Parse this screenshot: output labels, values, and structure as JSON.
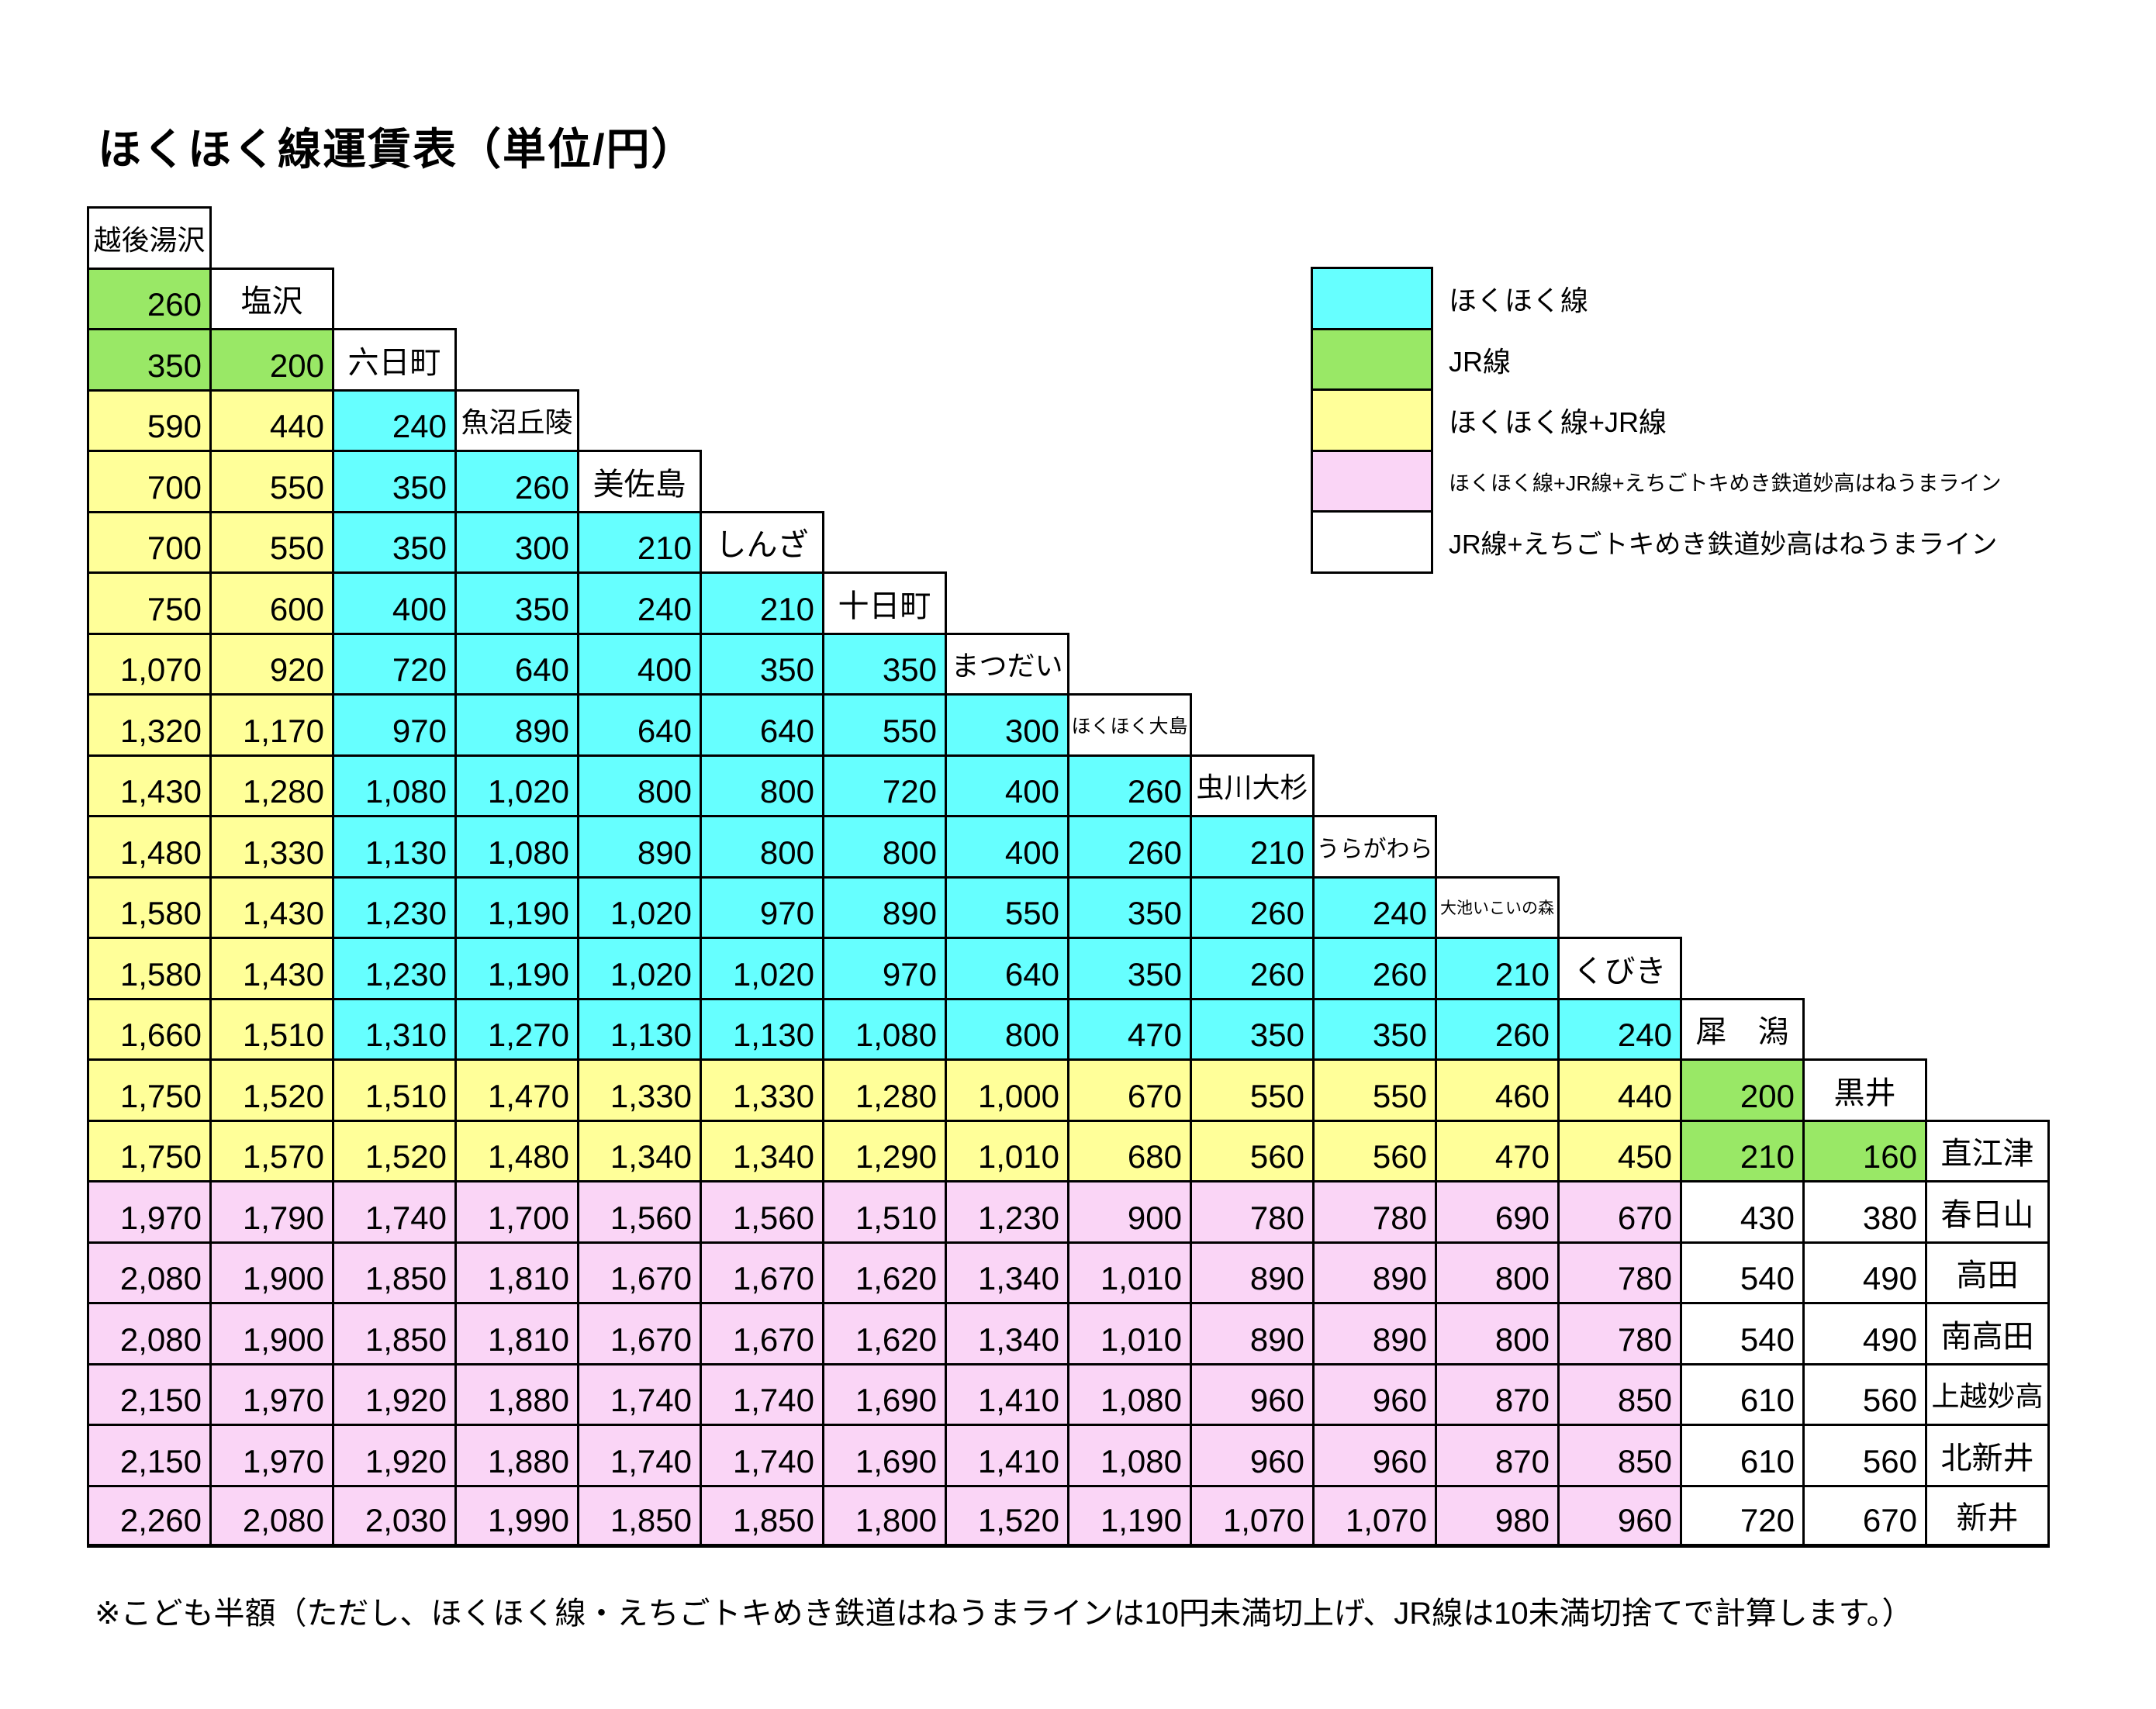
{
  "title": "ほくほく線運賃表（単位/円）",
  "note": "※こども半額（ただし、ほくほく線・えちごトキめき鉄道はねうまラインは10円未満切上げ、JR線は10未満切捨てで計算します。）",
  "legend": {
    "items": [
      {
        "key": "H",
        "label": "ほくほく線",
        "color": "#66FFFF"
      },
      {
        "key": "J",
        "label": "JR線",
        "color": "#99E866"
      },
      {
        "key": "HJ",
        "label": "ほくほく線+JR線",
        "color": "#FFFF99"
      },
      {
        "key": "HJT",
        "label": "ほくほく線+JR線+えちごトキめき鉄道妙高はねうまライン",
        "color": "#FAD5F6"
      },
      {
        "key": "JT",
        "label": "JR線+えちごトキめき鉄道妙高はねうまライン",
        "color": "#FFFFFF"
      }
    ]
  },
  "fare_table": {
    "unit": "円",
    "stations": [
      {
        "name": "越後湯沢",
        "fares": [],
        "categories": []
      },
      {
        "name": "塩沢",
        "fares": [
          "260"
        ],
        "categories": [
          "J"
        ]
      },
      {
        "name": "六日町",
        "fares": [
          "350",
          "200"
        ],
        "categories": [
          "J",
          "J"
        ]
      },
      {
        "name": "魚沼丘陵",
        "fares": [
          "590",
          "440",
          "240"
        ],
        "categories": [
          "HJ",
          "HJ",
          "H"
        ]
      },
      {
        "name": "美佐島",
        "fares": [
          "700",
          "550",
          "350",
          "260"
        ],
        "categories": [
          "HJ",
          "HJ",
          "H",
          "H"
        ]
      },
      {
        "name": "しんざ",
        "fares": [
          "700",
          "550",
          "350",
          "300",
          "210"
        ],
        "categories": [
          "HJ",
          "HJ",
          "H",
          "H",
          "H"
        ]
      },
      {
        "name": "十日町",
        "fares": [
          "750",
          "600",
          "400",
          "350",
          "240",
          "210"
        ],
        "categories": [
          "HJ",
          "HJ",
          "H",
          "H",
          "H",
          "H"
        ]
      },
      {
        "name": "まつだい",
        "fares": [
          "1,070",
          "920",
          "720",
          "640",
          "400",
          "350",
          "350"
        ],
        "categories": [
          "HJ",
          "HJ",
          "H",
          "H",
          "H",
          "H",
          "H"
        ]
      },
      {
        "name": "ほくほく大島",
        "fares": [
          "1,320",
          "1,170",
          "970",
          "890",
          "640",
          "640",
          "550",
          "300"
        ],
        "categories": [
          "HJ",
          "HJ",
          "H",
          "H",
          "H",
          "H",
          "H",
          "H"
        ]
      },
      {
        "name": "虫川大杉",
        "fares": [
          "1,430",
          "1,280",
          "1,080",
          "1,020",
          "800",
          "800",
          "720",
          "400",
          "260"
        ],
        "categories": [
          "HJ",
          "HJ",
          "H",
          "H",
          "H",
          "H",
          "H",
          "H",
          "H"
        ]
      },
      {
        "name": "うらがわら",
        "fares": [
          "1,480",
          "1,330",
          "1,130",
          "1,080",
          "890",
          "800",
          "800",
          "400",
          "260",
          "210"
        ],
        "categories": [
          "HJ",
          "HJ",
          "H",
          "H",
          "H",
          "H",
          "H",
          "H",
          "H",
          "H"
        ]
      },
      {
        "name": "大池いこいの森",
        "fares": [
          "1,580",
          "1,430",
          "1,230",
          "1,190",
          "1,020",
          "970",
          "890",
          "550",
          "350",
          "260",
          "240"
        ],
        "categories": [
          "HJ",
          "HJ",
          "H",
          "H",
          "H",
          "H",
          "H",
          "H",
          "H",
          "H",
          "H"
        ]
      },
      {
        "name": "くびき",
        "fares": [
          "1,580",
          "1,430",
          "1,230",
          "1,190",
          "1,020",
          "1,020",
          "970",
          "640",
          "350",
          "260",
          "260",
          "210"
        ],
        "categories": [
          "HJ",
          "HJ",
          "H",
          "H",
          "H",
          "H",
          "H",
          "H",
          "H",
          "H",
          "H",
          "H"
        ]
      },
      {
        "name": "犀　潟",
        "fares": [
          "1,660",
          "1,510",
          "1,310",
          "1,270",
          "1,130",
          "1,130",
          "1,080",
          "800",
          "470",
          "350",
          "350",
          "260",
          "240"
        ],
        "categories": [
          "HJ",
          "HJ",
          "H",
          "H",
          "H",
          "H",
          "H",
          "H",
          "H",
          "H",
          "H",
          "H",
          "H"
        ]
      },
      {
        "name": "黒井",
        "fares": [
          "1,750",
          "1,520",
          "1,510",
          "1,470",
          "1,330",
          "1,330",
          "1,280",
          "1,000",
          "670",
          "550",
          "550",
          "460",
          "440",
          "200"
        ],
        "categories": [
          "HJ",
          "HJ",
          "HJ",
          "HJ",
          "HJ",
          "HJ",
          "HJ",
          "HJ",
          "HJ",
          "HJ",
          "HJ",
          "HJ",
          "HJ",
          "J"
        ]
      },
      {
        "name": "直江津",
        "fares": [
          "1,750",
          "1,570",
          "1,520",
          "1,480",
          "1,340",
          "1,340",
          "1,290",
          "1,010",
          "680",
          "560",
          "560",
          "470",
          "450",
          "210",
          "160"
        ],
        "categories": [
          "HJ",
          "HJ",
          "HJ",
          "HJ",
          "HJ",
          "HJ",
          "HJ",
          "HJ",
          "HJ",
          "HJ",
          "HJ",
          "HJ",
          "HJ",
          "J",
          "J"
        ]
      },
      {
        "name": "春日山",
        "fares": [
          "1,970",
          "1,790",
          "1,740",
          "1,700",
          "1,560",
          "1,560",
          "1,510",
          "1,230",
          "900",
          "780",
          "780",
          "690",
          "670",
          "430",
          "380"
        ],
        "categories": [
          "HJT",
          "HJT",
          "HJT",
          "HJT",
          "HJT",
          "HJT",
          "HJT",
          "HJT",
          "HJT",
          "HJT",
          "HJT",
          "HJT",
          "HJT",
          "JT",
          "JT"
        ]
      },
      {
        "name": "高田",
        "fares": [
          "2,080",
          "1,900",
          "1,850",
          "1,810",
          "1,670",
          "1,670",
          "1,620",
          "1,340",
          "1,010",
          "890",
          "890",
          "800",
          "780",
          "540",
          "490"
        ],
        "categories": [
          "HJT",
          "HJT",
          "HJT",
          "HJT",
          "HJT",
          "HJT",
          "HJT",
          "HJT",
          "HJT",
          "HJT",
          "HJT",
          "HJT",
          "HJT",
          "JT",
          "JT"
        ]
      },
      {
        "name": "南高田",
        "fares": [
          "2,080",
          "1,900",
          "1,850",
          "1,810",
          "1,670",
          "1,670",
          "1,620",
          "1,340",
          "1,010",
          "890",
          "890",
          "800",
          "780",
          "540",
          "490"
        ],
        "categories": [
          "HJT",
          "HJT",
          "HJT",
          "HJT",
          "HJT",
          "HJT",
          "HJT",
          "HJT",
          "HJT",
          "HJT",
          "HJT",
          "HJT",
          "HJT",
          "JT",
          "JT"
        ]
      },
      {
        "name": "上越妙高",
        "fares": [
          "2,150",
          "1,970",
          "1,920",
          "1,880",
          "1,740",
          "1,740",
          "1,690",
          "1,410",
          "1,080",
          "960",
          "960",
          "870",
          "850",
          "610",
          "560"
        ],
        "categories": [
          "HJT",
          "HJT",
          "HJT",
          "HJT",
          "HJT",
          "HJT",
          "HJT",
          "HJT",
          "HJT",
          "HJT",
          "HJT",
          "HJT",
          "HJT",
          "JT",
          "JT"
        ]
      },
      {
        "name": "北新井",
        "fares": [
          "2,150",
          "1,970",
          "1,920",
          "1,880",
          "1,740",
          "1,740",
          "1,690",
          "1,410",
          "1,080",
          "960",
          "960",
          "870",
          "850",
          "610",
          "560"
        ],
        "categories": [
          "HJT",
          "HJT",
          "HJT",
          "HJT",
          "HJT",
          "HJT",
          "HJT",
          "HJT",
          "HJT",
          "HJT",
          "HJT",
          "HJT",
          "HJT",
          "JT",
          "JT"
        ]
      },
      {
        "name": "新井",
        "fares": [
          "2,260",
          "2,080",
          "2,030",
          "1,990",
          "1,850",
          "1,850",
          "1,800",
          "1,520",
          "1,190",
          "1,070",
          "1,070",
          "980",
          "960",
          "720",
          "670"
        ],
        "categories": [
          "HJT",
          "HJT",
          "HJT",
          "HJT",
          "HJT",
          "HJT",
          "HJT",
          "HJT",
          "HJT",
          "HJT",
          "HJT",
          "HJT",
          "HJT",
          "JT",
          "JT"
        ]
      }
    ]
  }
}
